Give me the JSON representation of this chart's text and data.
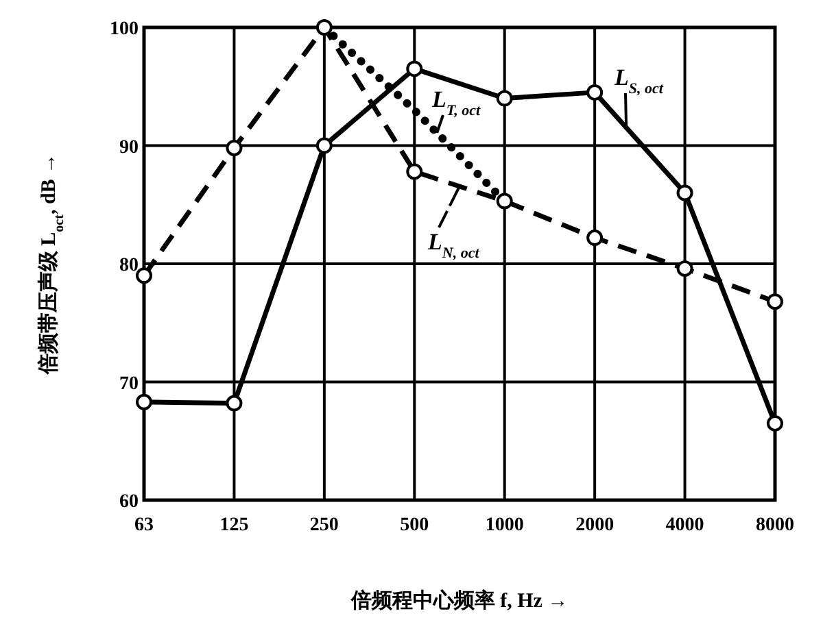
{
  "chart_data": {
    "type": "line",
    "xlabel": "倍频程中心频率 f, Hz →",
    "ylabel": "倍频带压声级  L$_{oct}$, dB →",
    "categories": [
      "63",
      "125",
      "250",
      "500",
      "1000",
      "2000",
      "4000",
      "8000"
    ],
    "series": [
      {
        "name": "L$_{S, oct}$",
        "color": "#000000",
        "line_style": "solid",
        "marker": "circle",
        "values": [
          68.3,
          68.2,
          90,
          96.5,
          94,
          94.5,
          86,
          66.5
        ]
      },
      {
        "name": "L$_{T, oct}$",
        "color": "#000000",
        "line_style": "dotted",
        "values": [
          null,
          null,
          100,
          93,
          85.3,
          null,
          null,
          null
        ]
      },
      {
        "name": "L$_{N, oct}$",
        "color": "#000000",
        "line_style": "dashed",
        "marker": "circle",
        "values": [
          79,
          89.8,
          100,
          87.8,
          85.3,
          82.2,
          79.6,
          76.8
        ]
      }
    ],
    "ylim": [
      60,
      100
    ],
    "yticks": [
      60,
      70,
      80,
      90,
      100
    ],
    "grid": true
  }
}
